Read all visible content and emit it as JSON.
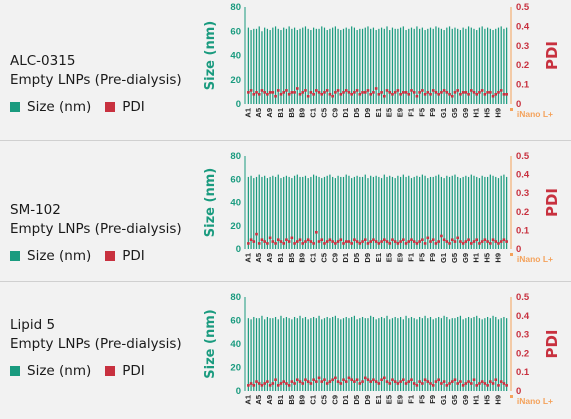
{
  "colors": {
    "size": "#1a9b7f",
    "pdi": "#c8313f",
    "accent": "#f4a25b"
  },
  "legend": {
    "size_label": "Size (nm)",
    "pdi_label": "PDI"
  },
  "watermark": "iNano L+",
  "chart_data": [
    {
      "type": "bar",
      "title_line1": "ALC-0315",
      "title_line2": "Empty LNPs (Pre-dialysis)",
      "ylabel": "Size (nm)",
      "y2label": "PDI",
      "ylim": [
        0,
        80
      ],
      "y2lim": [
        0,
        0.5
      ],
      "yticks": [
        "0",
        "20",
        "40",
        "60",
        "80"
      ],
      "y2ticks": [
        "0",
        "0.1",
        "0.2",
        "0.3",
        "0.4",
        "0.5"
      ],
      "xticklabels": [
        "A1",
        "A5",
        "A9",
        "B1",
        "B5",
        "B9",
        "C1",
        "C5",
        "C9",
        "D1",
        "D5",
        "D9",
        "E1",
        "E5",
        "E9",
        "F1",
        "F5",
        "F9",
        "G1",
        "G5",
        "G9",
        "H1",
        "H5",
        "H9"
      ],
      "size_values": [
        63,
        61,
        62,
        62,
        64,
        60,
        63,
        62,
        61,
        63,
        64,
        62,
        61,
        63,
        62,
        64,
        62,
        63,
        61,
        62,
        63,
        64,
        62,
        61,
        63,
        62,
        62,
        64,
        63,
        61,
        62,
        63,
        64,
        62,
        61,
        62,
        63,
        62,
        64,
        63,
        61,
        62,
        62,
        63,
        64,
        62,
        63,
        61,
        62,
        63,
        62,
        64,
        61,
        63,
        62,
        62,
        63,
        64,
        61,
        62,
        63,
        62,
        64,
        62,
        63,
        61,
        62,
        63,
        62,
        64,
        63,
        62,
        61,
        63,
        64,
        62,
        63,
        62,
        61,
        63,
        62,
        64,
        63,
        62,
        61,
        63,
        64,
        62,
        63,
        62,
        61,
        62,
        63,
        64,
        62,
        63
      ],
      "pdi_values": [
        0.06,
        0.07,
        0.05,
        0.06,
        0.05,
        0.07,
        0.06,
        0.05,
        0.06,
        0.06,
        0.04,
        0.07,
        0.05,
        0.06,
        0.07,
        0.05,
        0.06,
        0.06,
        0.08,
        0.05,
        0.06,
        0.07,
        0.04,
        0.06,
        0.05,
        0.07,
        0.06,
        0.05,
        0.06,
        0.07,
        0.05,
        0.04,
        0.06,
        0.07,
        0.05,
        0.06,
        0.07,
        0.06,
        0.05,
        0.06,
        0.07,
        0.05,
        0.06,
        0.06,
        0.07,
        0.05,
        0.06,
        0.08,
        0.05,
        0.06,
        0.04,
        0.07,
        0.06,
        0.05,
        0.06,
        0.07,
        0.05,
        0.06,
        0.06,
        0.05,
        0.07,
        0.06,
        0.04,
        0.06,
        0.07,
        0.05,
        0.06,
        0.05,
        0.07,
        0.06,
        0.05,
        0.06,
        0.07,
        0.06,
        0.05,
        0.04,
        0.06,
        0.07,
        0.05,
        0.06,
        0.06,
        0.05,
        0.07,
        0.06,
        0.05,
        0.06,
        0.07,
        0.05,
        0.06,
        0.06,
        0.04,
        0.05,
        0.06,
        0.07,
        0.05,
        0.05
      ]
    },
    {
      "type": "bar",
      "title_line1": "SM-102",
      "title_line2": "Empty LNPs (Pre-dialysis)",
      "ylabel": "Size (nm)",
      "y2label": "PDI",
      "ylim": [
        0,
        80
      ],
      "y2lim": [
        0,
        0.5
      ],
      "yticks": [
        "0",
        "20",
        "40",
        "60",
        "80"
      ],
      "y2ticks": [
        "0",
        "0.1",
        "0.2",
        "0.3",
        "0.4",
        "0.5"
      ],
      "xticklabels": [
        "A1",
        "A5",
        "A9",
        "B1",
        "B5",
        "B9",
        "C1",
        "C5",
        "C9",
        "D1",
        "D5",
        "D9",
        "E1",
        "E5",
        "E9",
        "F1",
        "F5",
        "F9",
        "G1",
        "G5",
        "G9",
        "H1",
        "H5",
        "H9"
      ],
      "size_values": [
        62,
        63,
        61,
        62,
        64,
        62,
        63,
        61,
        62,
        63,
        62,
        64,
        61,
        62,
        63,
        62,
        61,
        63,
        64,
        62,
        62,
        63,
        61,
        62,
        64,
        63,
        62,
        61,
        62,
        63,
        64,
        62,
        61,
        63,
        62,
        62,
        64,
        63,
        61,
        62,
        63,
        62,
        62,
        64,
        61,
        63,
        62,
        63,
        62,
        61,
        64,
        62,
        63,
        62,
        61,
        63,
        62,
        64,
        62,
        63,
        61,
        62,
        63,
        62,
        64,
        63,
        61,
        62,
        62,
        63,
        64,
        62,
        61,
        63,
        62,
        63,
        64,
        62,
        61,
        62,
        63,
        62,
        64,
        63,
        62,
        61,
        63,
        62,
        62,
        64,
        63,
        62,
        61,
        63,
        64,
        62
      ],
      "pdi_values": [
        0.03,
        0.05,
        0.04,
        0.08,
        0.03,
        0.05,
        0.04,
        0.03,
        0.06,
        0.04,
        0.03,
        0.05,
        0.04,
        0.03,
        0.05,
        0.04,
        0.06,
        0.03,
        0.04,
        0.05,
        0.03,
        0.04,
        0.05,
        0.04,
        0.03,
        0.09,
        0.04,
        0.05,
        0.03,
        0.04,
        0.05,
        0.04,
        0.03,
        0.04,
        0.05,
        0.03,
        0.04,
        0.04,
        0.03,
        0.05,
        0.04,
        0.03,
        0.04,
        0.05,
        0.03,
        0.04,
        0.05,
        0.04,
        0.03,
        0.04,
        0.05,
        0.04,
        0.03,
        0.05,
        0.04,
        0.03,
        0.04,
        0.05,
        0.03,
        0.04,
        0.05,
        0.04,
        0.03,
        0.04,
        0.05,
        0.03,
        0.06,
        0.04,
        0.05,
        0.03,
        0.04,
        0.07,
        0.05,
        0.04,
        0.03,
        0.05,
        0.04,
        0.06,
        0.04,
        0.03,
        0.04,
        0.05,
        0.03,
        0.04,
        0.05,
        0.03,
        0.04,
        0.05,
        0.04,
        0.03,
        0.05,
        0.04,
        0.03,
        0.04,
        0.05,
        0.04
      ]
    },
    {
      "type": "bar",
      "title_line1": "Lipid 5",
      "title_line2": "Empty LNPs (Pre-dialysis)",
      "ylabel": "Size (nm)",
      "y2label": "PDI",
      "ylim": [
        0,
        80
      ],
      "y2lim": [
        0,
        0.5
      ],
      "yticks": [
        "0",
        "20",
        "40",
        "60",
        "80"
      ],
      "y2ticks": [
        "0",
        "0.1",
        "0.2",
        "0.3",
        "0.4",
        "0.5"
      ],
      "xticklabels": [
        "A1",
        "A5",
        "A9",
        "B1",
        "B5",
        "B9",
        "C1",
        "C5",
        "C9",
        "D1",
        "D5",
        "D9",
        "E1",
        "E5",
        "E9",
        "F1",
        "F5",
        "F9",
        "G1",
        "G5",
        "G9",
        "H1",
        "H5",
        "H9"
      ],
      "size_values": [
        62,
        61,
        63,
        62,
        62,
        64,
        61,
        63,
        62,
        62,
        63,
        61,
        64,
        62,
        63,
        62,
        61,
        63,
        62,
        64,
        62,
        63,
        61,
        62,
        63,
        62,
        64,
        61,
        62,
        63,
        62,
        63,
        64,
        62,
        61,
        62,
        63,
        62,
        63,
        64,
        61,
        62,
        63,
        62,
        62,
        64,
        63,
        61,
        62,
        63,
        62,
        64,
        61,
        62,
        63,
        62,
        63,
        61,
        64,
        62,
        63,
        62,
        61,
        63,
        62,
        64,
        62,
        63,
        61,
        62,
        63,
        62,
        64,
        63,
        61,
        62,
        62,
        63,
        64,
        61,
        62,
        63,
        62,
        63,
        64,
        62,
        61,
        62,
        63,
        62,
        64,
        63,
        61,
        62,
        63,
        62
      ],
      "pdi_values": [
        0.03,
        0.04,
        0.03,
        0.05,
        0.04,
        0.03,
        0.04,
        0.05,
        0.03,
        0.04,
        0.06,
        0.03,
        0.04,
        0.05,
        0.04,
        0.03,
        0.05,
        0.04,
        0.06,
        0.05,
        0.04,
        0.06,
        0.05,
        0.04,
        0.06,
        0.05,
        0.07,
        0.05,
        0.06,
        0.04,
        0.05,
        0.06,
        0.07,
        0.05,
        0.04,
        0.06,
        0.05,
        0.07,
        0.06,
        0.05,
        0.06,
        0.04,
        0.05,
        0.07,
        0.06,
        0.05,
        0.06,
        0.05,
        0.04,
        0.06,
        0.07,
        0.05,
        0.04,
        0.06,
        0.05,
        0.04,
        0.05,
        0.06,
        0.04,
        0.05,
        0.06,
        0.04,
        0.03,
        0.05,
        0.04,
        0.06,
        0.05,
        0.04,
        0.03,
        0.05,
        0.06,
        0.04,
        0.05,
        0.03,
        0.04,
        0.05,
        0.06,
        0.04,
        0.05,
        0.03,
        0.04,
        0.05,
        0.04,
        0.06,
        0.03,
        0.04,
        0.05,
        0.04,
        0.03,
        0.05,
        0.04,
        0.06,
        0.03,
        0.05,
        0.04,
        0.03
      ]
    }
  ]
}
